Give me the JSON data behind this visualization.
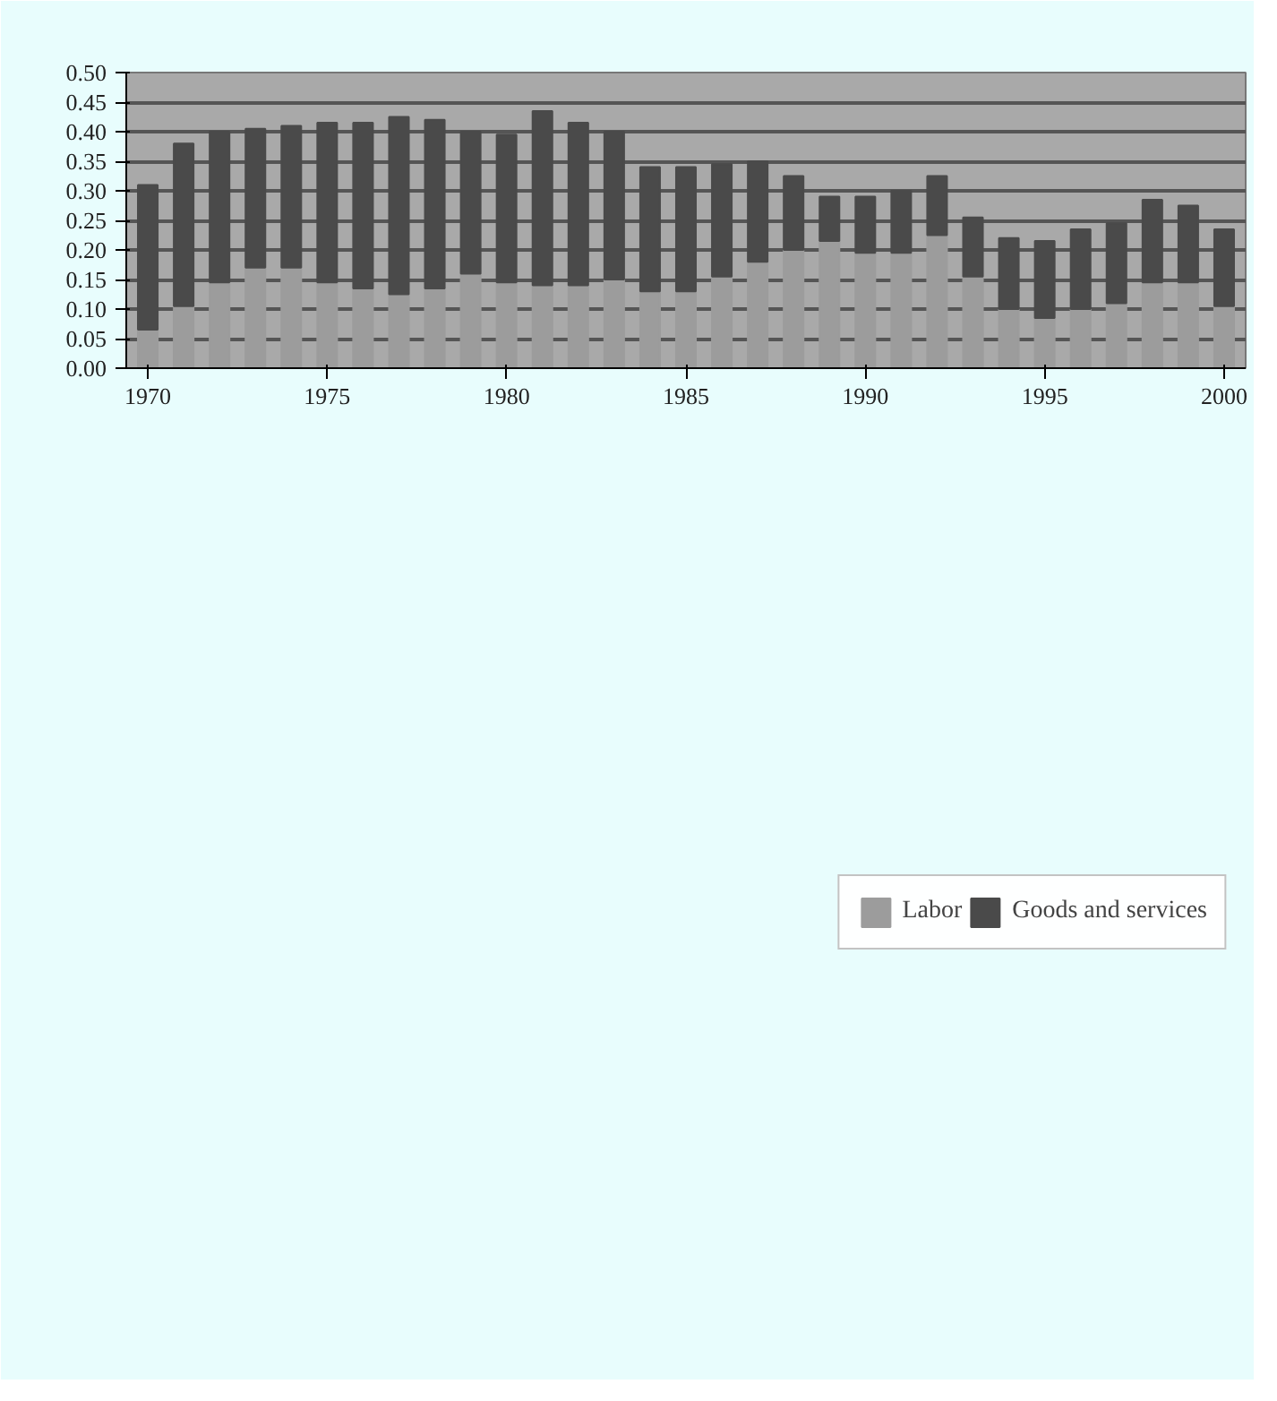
{
  "chart_data": {
    "type": "bar",
    "stacked": true,
    "x": [
      1970,
      1971,
      1972,
      1973,
      1974,
      1975,
      1976,
      1977,
      1978,
      1979,
      1980,
      1981,
      1982,
      1983,
      1984,
      1985,
      1986,
      1987,
      1988,
      1989,
      1990,
      1991,
      1992,
      1993,
      1994,
      1995,
      1996,
      1997,
      1998,
      1999,
      2000
    ],
    "series": [
      {
        "name": "Labor",
        "color": "#9c9c9c",
        "values": [
          0.065,
          0.105,
          0.145,
          0.17,
          0.17,
          0.145,
          0.135,
          0.125,
          0.135,
          0.16,
          0.145,
          0.14,
          0.14,
          0.15,
          0.13,
          0.13,
          0.155,
          0.18,
          0.2,
          0.215,
          0.195,
          0.195,
          0.225,
          0.155,
          0.1,
          0.085,
          0.1,
          0.11,
          0.145,
          0.145,
          0.105
        ]
      },
      {
        "name": "Goods and services",
        "color": "#4a4a4a",
        "values": [
          0.245,
          0.275,
          0.255,
          0.235,
          0.24,
          0.27,
          0.28,
          0.3,
          0.285,
          0.24,
          0.25,
          0.295,
          0.275,
          0.25,
          0.21,
          0.21,
          0.19,
          0.17,
          0.125,
          0.075,
          0.095,
          0.105,
          0.1,
          0.1,
          0.12,
          0.13,
          0.135,
          0.135,
          0.14,
          0.13,
          0.13
        ]
      }
    ],
    "xlim": [
      1969.4,
      2000.6
    ],
    "xticks": [
      1970,
      1975,
      1980,
      1985,
      1990,
      1995,
      2000
    ],
    "ylim": [
      0,
      0.5
    ],
    "yticks": [
      {
        "value": 0,
        "label": "0.00"
      },
      {
        "value": 0.05,
        "label": "0.05"
      },
      {
        "value": 0.1,
        "label": "0.10"
      },
      {
        "value": 0.15,
        "label": "0.15"
      },
      {
        "value": 0.2,
        "label": "0.20"
      },
      {
        "value": 0.25,
        "label": "0.25"
      },
      {
        "value": 0.3,
        "label": "0.30"
      },
      {
        "value": 0.35,
        "label": "0.35"
      },
      {
        "value": 0.4,
        "label": "0.40"
      },
      {
        "value": 0.45,
        "label": "0.45"
      },
      {
        "value": 0.5,
        "label": "0.50"
      }
    ],
    "grid": "y",
    "legend": "bottom"
  }
}
